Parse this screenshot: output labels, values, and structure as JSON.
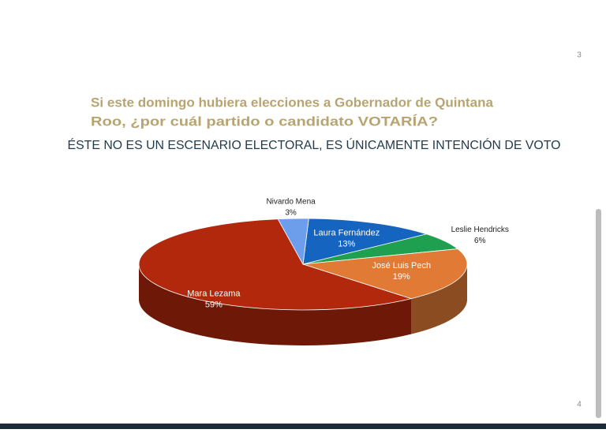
{
  "page_numbers": [
    "3",
    "4"
  ],
  "chart_data": {
    "type": "pie",
    "title": [
      "Si este domingo hubiera elecciones a Gobernador de Quintana",
      "Roo, ¿por cuál partido o candidato VOTARÍA?"
    ],
    "subtitle": "ÉSTE NO ES UN ESCENARIO ELECTORAL, ES ÚNICAMENTE INTENCIÓN DE VOTO",
    "categories": [
      "Laura Fernández",
      "Leslie Hendricks",
      "José Luis Pech",
      "Mara Lezama",
      "Nivardo Mena"
    ],
    "values": [
      13,
      6,
      19,
      59,
      3
    ],
    "value_labels": [
      "13%",
      "6%",
      "19%",
      "59%",
      "3%"
    ],
    "colors": [
      "#1565c0",
      "#1fa050",
      "#e07a35",
      "#b2280d",
      "#6d9eeb"
    ]
  }
}
